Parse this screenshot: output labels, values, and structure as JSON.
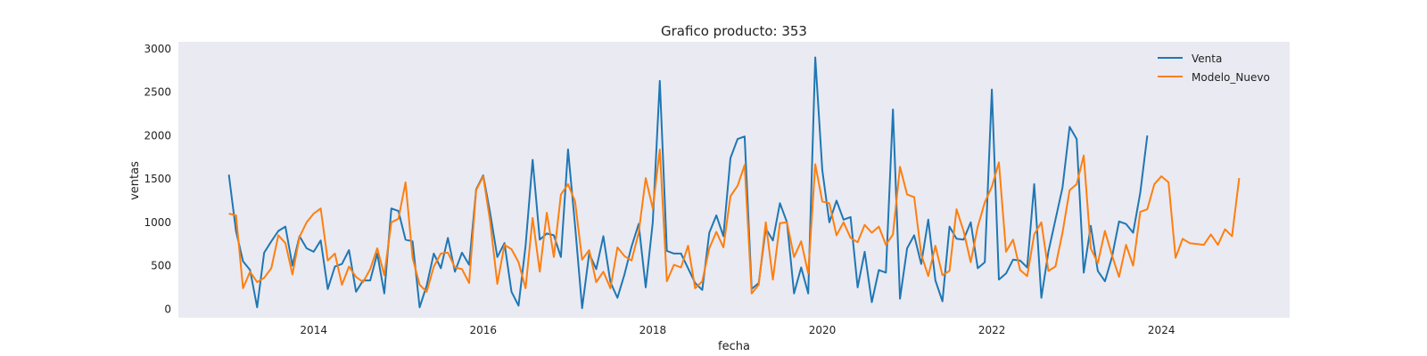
{
  "chart_data": {
    "type": "line",
    "title": "Grafico producto: 353",
    "xlabel": "fecha",
    "ylabel": "ventas",
    "x_start": "2013-01",
    "x_ticks": [
      "2014",
      "2016",
      "2018",
      "2020",
      "2022",
      "2024"
    ],
    "y_ticks": [
      "0",
      "500",
      "1000",
      "1500",
      "2000",
      "2500",
      "3000"
    ],
    "ylim": [
      -100,
      3080
    ],
    "grid": false,
    "legend_position": "top-right",
    "background": "#eaeaf2",
    "series": [
      {
        "name": "Venta",
        "color": "#1f77b4",
        "values": [
          1550,
          900,
          550,
          450,
          20,
          650,
          780,
          900,
          950,
          500,
          840,
          700,
          660,
          790,
          230,
          490,
          520,
          680,
          200,
          330,
          330,
          640,
          180,
          1160,
          1130,
          800,
          780,
          20,
          270,
          640,
          470,
          820,
          430,
          650,
          510,
          1380,
          1540,
          1100,
          600,
          760,
          200,
          40,
          730,
          1720,
          800,
          870,
          850,
          600,
          1840,
          960,
          10,
          640,
          460,
          840,
          310,
          130,
          400,
          720,
          980,
          250,
          1000,
          2630,
          670,
          640,
          640,
          470,
          300,
          220,
          880,
          1080,
          840,
          1740,
          1960,
          1990,
          230,
          300,
          930,
          790,
          1220,
          1000,
          180,
          480,
          180,
          2900,
          1600,
          1000,
          1250,
          1030,
          1060,
          250,
          660,
          80,
          450,
          420,
          2300,
          120,
          700,
          850,
          520,
          1030,
          330,
          90,
          950,
          810,
          800,
          1000,
          470,
          540,
          2530,
          340,
          410,
          570,
          560,
          480,
          1440,
          130,
          660,
          1030,
          1400,
          2100,
          1960,
          420,
          960,
          440,
          320,
          600,
          1010,
          980,
          880,
          1340,
          2000
        ]
      },
      {
        "name": "Modelo_Nuevo",
        "color": "#ff7f0e",
        "values": [
          1100,
          1080,
          240,
          430,
          310,
          360,
          470,
          850,
          760,
          400,
          830,
          1000,
          1100,
          1160,
          560,
          640,
          280,
          490,
          370,
          310,
          460,
          700,
          390,
          1000,
          1040,
          1460,
          590,
          280,
          200,
          490,
          640,
          650,
          480,
          460,
          300,
          1370,
          1530,
          1000,
          290,
          740,
          690,
          540,
          240,
          1050,
          430,
          1110,
          600,
          1320,
          1440,
          1240,
          570,
          680,
          310,
          430,
          240,
          710,
          610,
          560,
          880,
          1510,
          1160,
          1840,
          320,
          510,
          480,
          730,
          240,
          320,
          700,
          890,
          710,
          1300,
          1420,
          1660,
          180,
          280,
          1000,
          340,
          990,
          1000,
          600,
          780,
          410,
          1670,
          1240,
          1220,
          850,
          1000,
          820,
          770,
          970,
          880,
          950,
          740,
          860,
          1640,
          1320,
          1290,
          630,
          380,
          730,
          390,
          440,
          1150,
          900,
          540,
          950,
          1230,
          1410,
          1690,
          660,
          800,
          450,
          380,
          860,
          1000,
          440,
          490,
          880,
          1370,
          1440,
          1770,
          700,
          530,
          900,
          620,
          370,
          740,
          500,
          1120,
          1150,
          1440,
          1530,
          1460,
          590,
          810,
          760,
          750,
          740,
          860,
          740,
          920,
          840,
          1510
        ]
      }
    ]
  }
}
